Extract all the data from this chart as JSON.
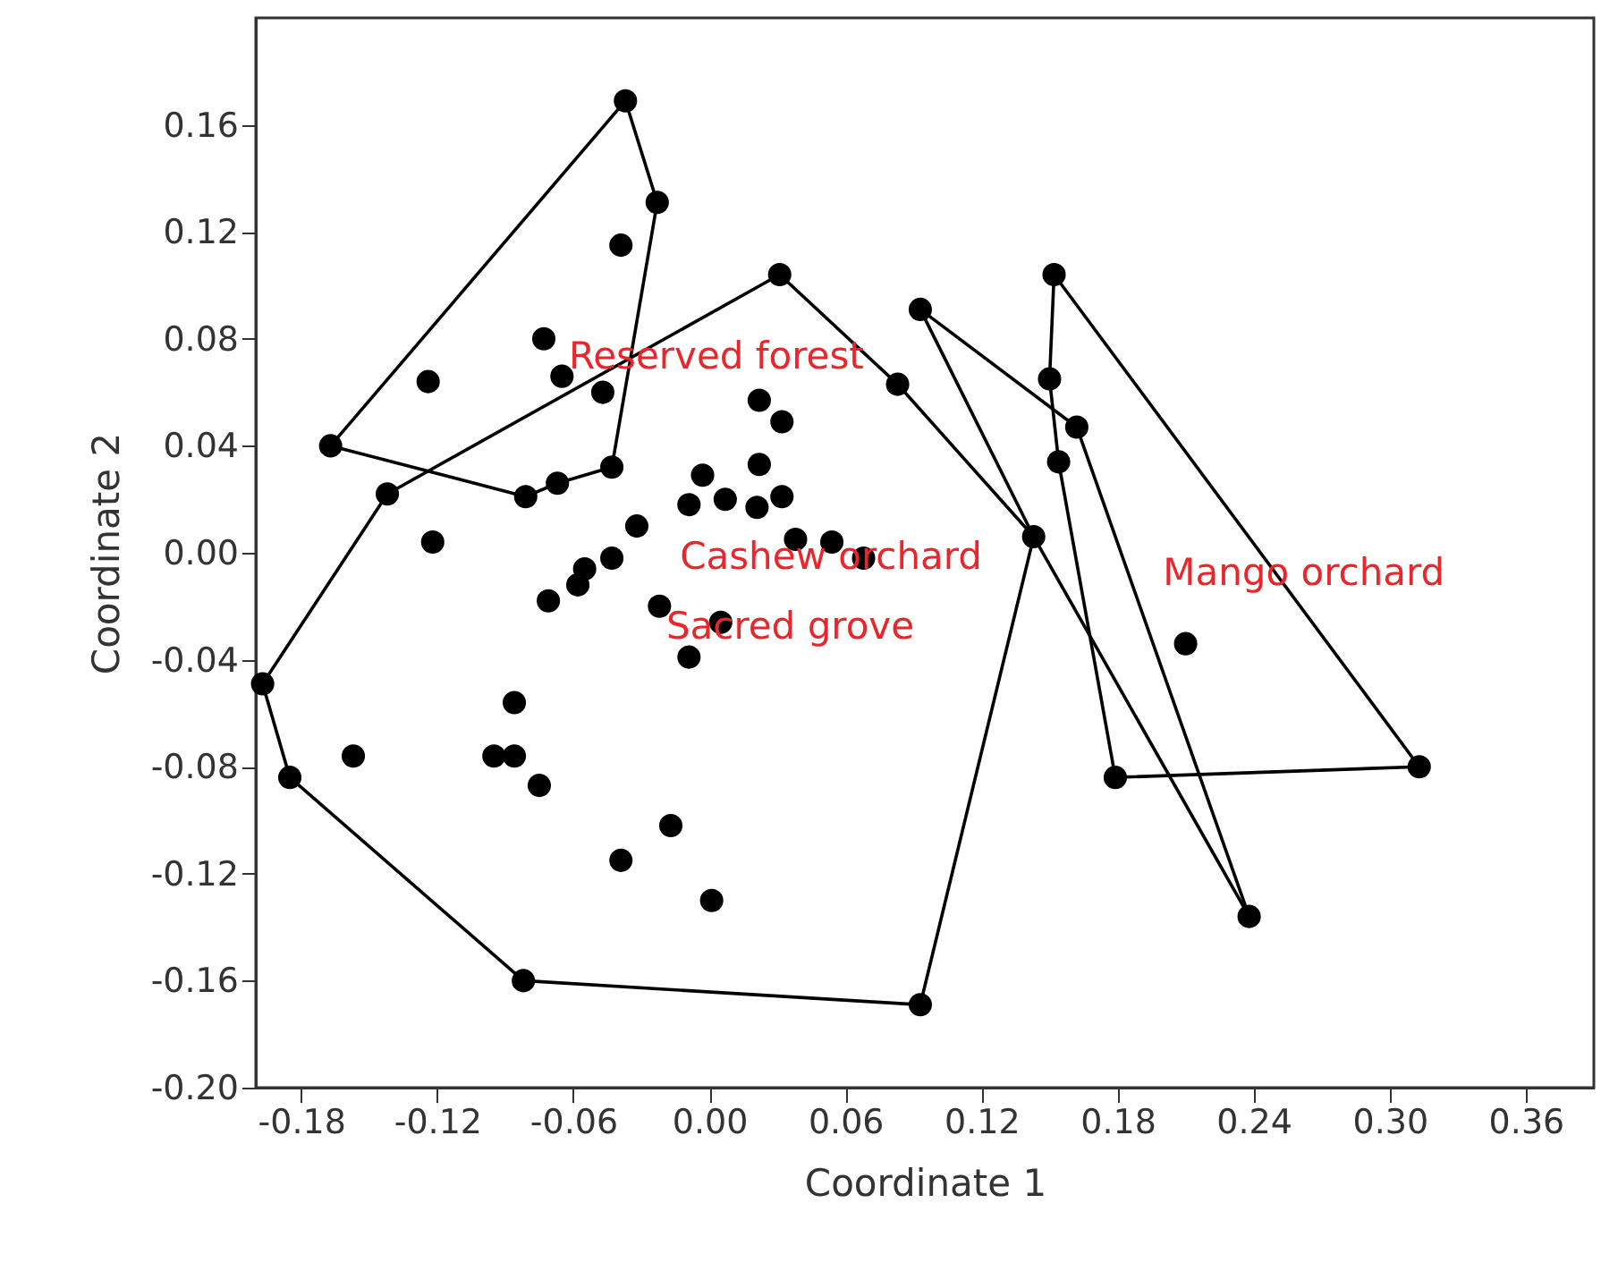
{
  "chart_data": {
    "type": "scatter",
    "xlabel": "Coordinate 1",
    "ylabel": "Coordinate 2",
    "xlim": [
      -0.2,
      0.39
    ],
    "ylim": [
      -0.2,
      0.2
    ],
    "xticks": [
      {
        "value": -0.18,
        "label": "-0.18"
      },
      {
        "value": -0.12,
        "label": "-0.12"
      },
      {
        "value": -0.06,
        "label": "-0.06"
      },
      {
        "value": 0,
        "label": "0.00"
      },
      {
        "value": 0.06,
        "label": "0.06"
      },
      {
        "value": 0.12,
        "label": "0.12"
      },
      {
        "value": 0.18,
        "label": "0.18"
      },
      {
        "value": 0.24,
        "label": "0.24"
      },
      {
        "value": 0.3,
        "label": "0.30"
      },
      {
        "value": 0.36,
        "label": "0.36"
      }
    ],
    "yticks": [
      {
        "value": -0.2,
        "label": "-0.20"
      },
      {
        "value": -0.16,
        "label": "-0.16"
      },
      {
        "value": -0.12,
        "label": "-0.12"
      },
      {
        "value": -0.08,
        "label": "-0.08"
      },
      {
        "value": -0.04,
        "label": "-0.04"
      },
      {
        "value": 0,
        "label": "0.00"
      },
      {
        "value": 0.04,
        "label": "0.04"
      },
      {
        "value": 0.08,
        "label": "0.08"
      },
      {
        "value": 0.12,
        "label": "0.12"
      },
      {
        "value": 0.16,
        "label": "0.16"
      }
    ],
    "grid": false,
    "series": [
      {
        "color": "#000000",
        "marker": "circle",
        "x": [
          -0.167,
          -0.037,
          -0.023,
          -0.043,
          -0.067,
          -0.081,
          -0.197,
          -0.142,
          0.031,
          0.083,
          0.143,
          0.093,
          -0.082,
          -0.185,
          0.093,
          0.162,
          0.238,
          0.152,
          0.15,
          0.154,
          0.179,
          0.313,
          0.21,
          -0.039,
          -0.073,
          -0.124,
          -0.065,
          -0.047,
          -0.122,
          -0.003,
          0.022,
          0.022,
          0.032,
          -0.009,
          0.007,
          0.021,
          0.032,
          -0.032,
          -0.043,
          -0.055,
          -0.058,
          -0.071,
          0.038,
          0.054,
          0.068,
          -0.022,
          0.005,
          -0.009,
          -0.086,
          -0.157,
          -0.095,
          -0.086,
          -0.075,
          -0.017,
          -0.039,
          0.001
        ],
        "values": [
          0.04,
          0.169,
          0.131,
          0.032,
          0.026,
          0.021,
          -0.049,
          0.022,
          0.104,
          0.063,
          0.006,
          -0.169,
          -0.16,
          -0.084,
          0.091,
          0.047,
          -0.136,
          0.104,
          0.065,
          0.034,
          -0.084,
          -0.08,
          -0.034,
          0.115,
          0.08,
          0.064,
          0.066,
          0.06,
          0.004,
          0.029,
          0.033,
          0.057,
          0.049,
          0.018,
          0.02,
          0.017,
          0.021,
          0.01,
          -0.002,
          -0.006,
          -0.012,
          -0.018,
          0.005,
          0.004,
          -0.002,
          -0.02,
          -0.026,
          -0.039,
          -0.056,
          -0.076,
          -0.076,
          -0.076,
          -0.087,
          -0.102,
          -0.115,
          -0.13
        ]
      },
      {
        "type": "line",
        "color": "#000000",
        "line_style": "solid",
        "x": [
          -0.167,
          -0.037,
          -0.023
        ],
        "values": [
          0.04,
          0.169,
          0.131
        ]
      },
      {
        "type": "line",
        "color": "#000000",
        "line_style": "solid",
        "x": [
          -0.167,
          -0.081,
          -0.067,
          -0.043,
          -0.023
        ],
        "values": [
          0.04,
          0.021,
          0.026,
          0.032,
          0.131
        ]
      },
      {
        "type": "line",
        "color": "#000000",
        "line_style": "solid",
        "x": [
          -0.197,
          -0.142,
          0.031,
          0.083,
          0.143
        ],
        "values": [
          -0.049,
          0.022,
          0.104,
          0.063,
          0.006
        ]
      },
      {
        "type": "line",
        "color": "#000000",
        "line_style": "solid",
        "x": [
          -0.197,
          -0.185,
          -0.082,
          0.093,
          0.143
        ],
        "values": [
          -0.049,
          -0.084,
          -0.16,
          -0.169,
          0.006
        ]
      },
      {
        "type": "line",
        "color": "#000000",
        "line_style": "solid",
        "x": [
          0.093,
          0.162,
          0.238
        ],
        "values": [
          0.091,
          0.047,
          -0.136
        ]
      },
      {
        "type": "line",
        "color": "#000000",
        "line_style": "solid",
        "x": [
          0.093,
          0.143,
          0.238
        ],
        "values": [
          0.091,
          0.006,
          -0.136
        ]
      },
      {
        "type": "line",
        "color": "#000000",
        "line_style": "solid",
        "x": [
          0.15,
          0.152,
          0.313
        ],
        "values": [
          0.065,
          0.104,
          -0.08
        ]
      },
      {
        "type": "line",
        "color": "#000000",
        "line_style": "solid",
        "x": [
          0.15,
          0.154,
          0.179,
          0.313
        ],
        "values": [
          0.065,
          0.034,
          -0.084,
          -0.08
        ]
      }
    ],
    "annotations": [
      {
        "text": "Reserved forest",
        "x": -0.062,
        "y": 0.073
      },
      "Cashew orchard",
      "Sacred grove",
      "Mango orchard"
    ]
  }
}
